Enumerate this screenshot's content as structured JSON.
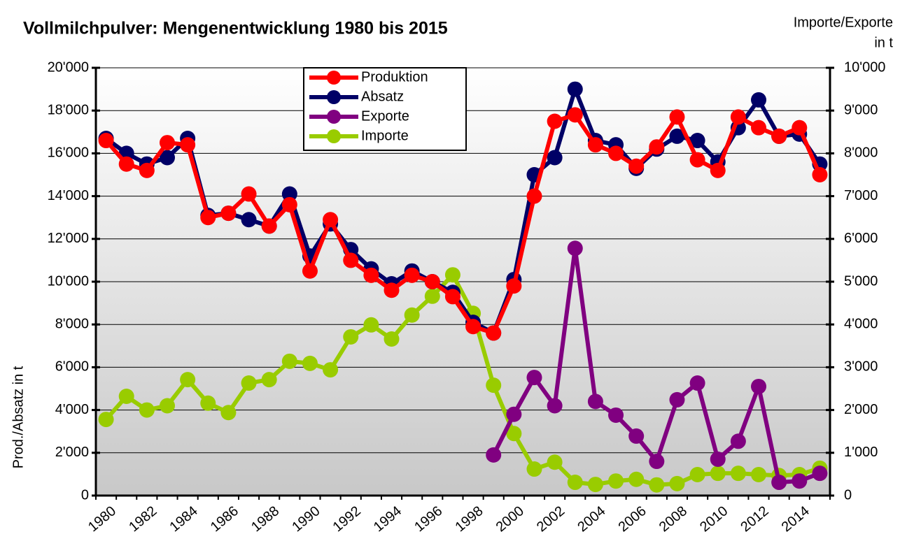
{
  "chart_data": {
    "type": "line",
    "title": "Vollmilchpulver: Mengenentwicklung 1980 bis 2015",
    "y_label": "Prod./Absatz in t",
    "y2_label": [
      "Importe/Exporte",
      "in t"
    ],
    "categories": [
      "1980",
      null,
      "1982",
      null,
      "1984",
      null,
      "1986",
      null,
      "1988",
      null,
      "1990",
      null,
      "1992",
      null,
      "1994",
      null,
      "1996",
      null,
      "1998",
      null,
      "2000",
      null,
      "2002",
      null,
      "2004",
      null,
      "2006",
      null,
      "2008",
      null,
      "2010",
      null,
      "2012",
      null,
      "2014",
      null
    ],
    "ylim": [
      0,
      20000
    ],
    "yticks": [
      0,
      {
        "value": 2000,
        "label": "2'000"
      },
      {
        "value": 4000,
        "label": "4'000"
      },
      {
        "value": 6000,
        "label": "6'000"
      },
      {
        "value": 8000,
        "label": "8'000"
      },
      {
        "value": 10000,
        "label": "10'000"
      },
      {
        "value": 12000,
        "label": "12'000"
      },
      {
        "value": 14000,
        "label": "14'000"
      },
      {
        "value": 16000,
        "label": "16'000"
      },
      {
        "value": 18000,
        "label": "18'000"
      },
      {
        "value": 20000,
        "label": "20'000"
      }
    ],
    "y2lim": [
      0,
      10000
    ],
    "y2ticks": [
      0,
      {
        "value": 1000,
        "label": "1'000"
      },
      {
        "value": 2000,
        "label": "2'000"
      },
      {
        "value": 3000,
        "label": "3'000"
      },
      {
        "value": 4000,
        "label": "4'000"
      },
      {
        "value": 5000,
        "label": "5'000"
      },
      {
        "value": 6000,
        "label": "6'000"
      },
      {
        "value": 7000,
        "label": "7'000"
      },
      {
        "value": 8000,
        "label": "8'000"
      },
      {
        "value": 9000,
        "label": "9'000"
      },
      {
        "value": 10000,
        "label": "10'000"
      }
    ],
    "grid": true,
    "legend": "top",
    "series": [
      {
        "name": "Produktion",
        "color": "#ff0000",
        "values": [
          16600,
          15500,
          15200,
          16500,
          16400,
          13000,
          13200,
          14100,
          12600,
          13600,
          10500,
          12900,
          11000,
          10300,
          9600,
          10300,
          10000,
          9300,
          7900,
          7600,
          9800,
          14000,
          17500,
          17800,
          16400,
          16000,
          15400,
          16300,
          17700,
          15700,
          15200,
          17700,
          17200,
          16800,
          17200,
          15000
        ]
      },
      {
        "name": "Absatz",
        "color": "#000066",
        "values": [
          16700,
          16000,
          15500,
          15800,
          16700,
          13100,
          13200,
          12900,
          12600,
          14100,
          11200,
          12700,
          11500,
          10600,
          9900,
          10500,
          10000,
          9500,
          8100,
          7600,
          10100,
          15000,
          15800,
          19000,
          16600,
          16400,
          15300,
          16200,
          16800,
          16600,
          15600,
          17200,
          18500,
          16800,
          16900,
          15500
        ]
      },
      {
        "name": "Exporte",
        "color": "#800080",
        "axis": "y2",
        "values": [
          null,
          null,
          null,
          null,
          null,
          null,
          null,
          null,
          null,
          null,
          null,
          null,
          null,
          null,
          null,
          null,
          null,
          null,
          null,
          950,
          1900,
          2760,
          2100,
          5780,
          2200,
          1880,
          1390,
          800,
          2240,
          2630,
          850,
          1270,
          2550,
          310,
          340,
          520
        ]
      },
      {
        "name": "Importe",
        "color": "#99cc00",
        "axis": "y2",
        "values": [
          1780,
          2320,
          2000,
          2100,
          2710,
          2160,
          1940,
          2630,
          2710,
          3140,
          3090,
          2940,
          3710,
          3990,
          3660,
          4220,
          4660,
          5160,
          4260,
          2580,
          1450,
          620,
          780,
          310,
          260,
          340,
          380,
          250,
          280,
          490,
          520,
          520,
          490,
          470,
          490,
          640
        ]
      }
    ]
  }
}
